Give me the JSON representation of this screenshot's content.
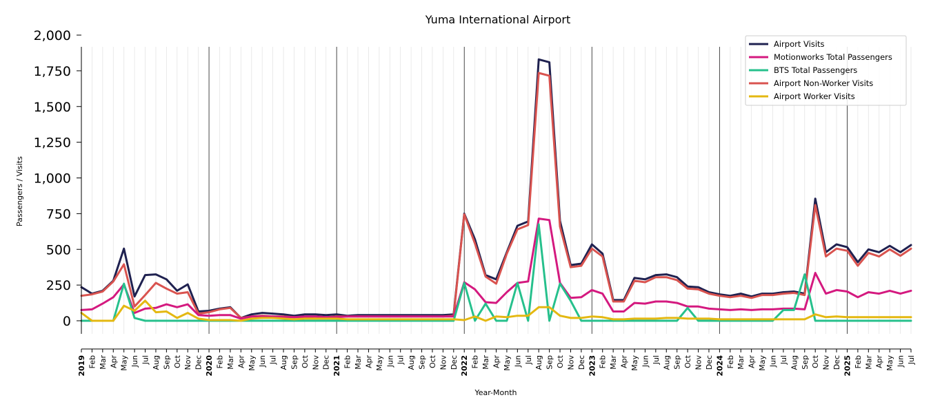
{
  "chart_data": {
    "type": "line",
    "title": "Yuma International Airport",
    "xlabel": "Year-Month",
    "ylabel": "Passengers / Visits",
    "ylim": [
      -100,
      2000
    ],
    "yticks": [
      0,
      250,
      500,
      750,
      1000,
      1250,
      1500,
      1750,
      2000
    ],
    "ytick_labels": [
      "0",
      "250",
      "500",
      "750",
      "1,000",
      "1,250",
      "1,500",
      "1,750",
      "2,000"
    ],
    "legend_position": "top-right",
    "grid": "vertical monthly lines, darker year separators",
    "x": [
      "2019-01",
      "2019-02",
      "2019-03",
      "2019-04",
      "2019-05",
      "2019-06",
      "2019-07",
      "2019-08",
      "2019-09",
      "2019-10",
      "2019-11",
      "2019-12",
      "2020-01",
      "2020-02",
      "2020-03",
      "2020-04",
      "2020-05",
      "2020-06",
      "2020-07",
      "2020-08",
      "2020-09",
      "2020-10",
      "2020-11",
      "2020-12",
      "2021-01",
      "2021-02",
      "2021-03",
      "2021-04",
      "2021-05",
      "2021-06",
      "2021-07",
      "2021-08",
      "2021-09",
      "2021-10",
      "2021-11",
      "2021-12",
      "2022-01",
      "2022-02",
      "2022-03",
      "2022-04",
      "2022-05",
      "2022-06",
      "2022-07",
      "2022-08",
      "2022-09",
      "2022-10",
      "2022-11",
      "2022-12",
      "2023-01",
      "2023-02",
      "2023-03",
      "2023-04",
      "2023-05",
      "2023-06",
      "2023-07",
      "2023-08",
      "2023-09",
      "2023-10",
      "2023-11",
      "2023-12",
      "2024-01",
      "2024-02",
      "2024-03",
      "2024-04",
      "2024-05",
      "2024-06",
      "2024-07",
      "2024-08",
      "2024-09",
      "2024-10",
      "2024-11",
      "2024-12",
      "2025-01",
      "2025-02",
      "2025-03",
      "2025-04",
      "2025-05",
      "2025-06",
      "2025-07"
    ],
    "tick_labels": [
      "2019",
      "Feb",
      "Mar",
      "Apr",
      "May",
      "Jun",
      "Jul",
      "Aug",
      "Sep",
      "Oct",
      "Nov",
      "Dec",
      "2020",
      "Feb",
      "Mar",
      "Apr",
      "May",
      "Jun",
      "Jul",
      "Aug",
      "Sep",
      "Oct",
      "Nov",
      "Dec",
      "2021",
      "Feb",
      "Mar",
      "Apr",
      "May",
      "Jun",
      "Jul",
      "Aug",
      "Sep",
      "Oct",
      "Nov",
      "Dec",
      "2022",
      "Feb",
      "Mar",
      "Apr",
      "May",
      "Jun",
      "Jul",
      "Aug",
      "Sep",
      "Oct",
      "Nov",
      "Dec",
      "2023",
      "Feb",
      "Mar",
      "Apr",
      "May",
      "Jun",
      "Jul",
      "Aug",
      "Sep",
      "Oct",
      "Nov",
      "Dec",
      "2024",
      "Feb",
      "Mar",
      "Apr",
      "May",
      "Jun",
      "Jul",
      "Aug",
      "Sep",
      "Oct",
      "Nov",
      "Dec",
      "2025",
      "Feb",
      "Mar",
      "Apr",
      "May",
      "Jun",
      "Jul"
    ],
    "series": [
      {
        "name": "Airport Visits",
        "color": "#1f2150",
        "values": [
          235,
          190,
          210,
          280,
          505,
          170,
          320,
          325,
          290,
          210,
          255,
          65,
          70,
          85,
          95,
          20,
          45,
          55,
          50,
          45,
          35,
          45,
          45,
          40,
          45,
          35,
          40,
          40,
          40,
          40,
          40,
          40,
          40,
          40,
          40,
          45,
          750,
          570,
          320,
          290,
          480,
          665,
          695,
          1830,
          1810,
          700,
          390,
          400,
          535,
          470,
          145,
          145,
          300,
          290,
          320,
          325,
          305,
          240,
          235,
          200,
          185,
          175,
          190,
          170,
          190,
          190,
          200,
          205,
          190,
          855,
          480,
          535,
          515,
          410,
          500,
          480,
          525,
          480,
          530
        ]
      },
      {
        "name": "Motionworks Total Passengers",
        "color": "#d4197f",
        "values": [
          75,
          80,
          120,
          165,
          255,
          55,
          85,
          90,
          115,
          95,
          115,
          40,
          35,
          40,
          40,
          15,
          30,
          30,
          30,
          25,
          25,
          30,
          30,
          25,
          25,
          30,
          30,
          30,
          30,
          30,
          30,
          30,
          30,
          30,
          30,
          30,
          270,
          220,
          130,
          125,
          200,
          265,
          275,
          715,
          705,
          265,
          160,
          165,
          215,
          190,
          65,
          65,
          125,
          120,
          135,
          135,
          125,
          100,
          100,
          85,
          80,
          75,
          80,
          75,
          80,
          80,
          85,
          85,
          80,
          335,
          190,
          215,
          205,
          165,
          200,
          190,
          210,
          190,
          210
        ]
      },
      {
        "name": "BTS Total Passengers",
        "color": "#26c08c",
        "values": [
          0,
          0,
          0,
          0,
          260,
          20,
          0,
          0,
          0,
          0,
          0,
          0,
          0,
          0,
          0,
          0,
          0,
          0,
          0,
          0,
          0,
          0,
          0,
          0,
          0,
          0,
          0,
          0,
          0,
          0,
          0,
          0,
          0,
          0,
          0,
          0,
          265,
          0,
          120,
          0,
          0,
          265,
          0,
          675,
          0,
          260,
          140,
          0,
          0,
          0,
          0,
          0,
          0,
          0,
          0,
          0,
          0,
          90,
          0,
          0,
          0,
          0,
          0,
          0,
          0,
          0,
          75,
          75,
          325,
          0,
          0,
          0,
          0,
          0,
          0,
          0,
          0,
          0,
          0
        ]
      },
      {
        "name": "Airport Non-Worker Visits",
        "color": "#d9534f",
        "values": [
          175,
          185,
          205,
          275,
          395,
          100,
          180,
          265,
          225,
          190,
          200,
          50,
          60,
          80,
          90,
          20,
          30,
          35,
          30,
          30,
          25,
          25,
          30,
          25,
          30,
          30,
          30,
          30,
          30,
          30,
          30,
          30,
          30,
          30,
          30,
          35,
          745,
          540,
          310,
          260,
          470,
          640,
          670,
          1735,
          1715,
          660,
          375,
          385,
          505,
          450,
          135,
          135,
          280,
          270,
          305,
          305,
          285,
          225,
          220,
          190,
          175,
          165,
          175,
          160,
          180,
          180,
          190,
          195,
          180,
          810,
          450,
          505,
          490,
          385,
          475,
          450,
          500,
          455,
          505
        ]
      },
      {
        "name": "Airport Worker Visits",
        "color": "#e4b811",
        "values": [
          55,
          0,
          0,
          0,
          105,
          70,
          140,
          60,
          65,
          20,
          55,
          15,
          5,
          5,
          5,
          0,
          15,
          20,
          20,
          15,
          10,
          15,
          15,
          15,
          15,
          10,
          10,
          10,
          10,
          10,
          10,
          10,
          10,
          10,
          10,
          10,
          5,
          30,
          0,
          30,
          25,
          35,
          35,
          95,
          95,
          35,
          20,
          20,
          30,
          25,
          10,
          10,
          15,
          15,
          15,
          20,
          20,
          15,
          15,
          15,
          10,
          10,
          10,
          10,
          10,
          10,
          10,
          10,
          10,
          45,
          25,
          30,
          25,
          25,
          25,
          25,
          25,
          25,
          25
        ]
      }
    ]
  }
}
